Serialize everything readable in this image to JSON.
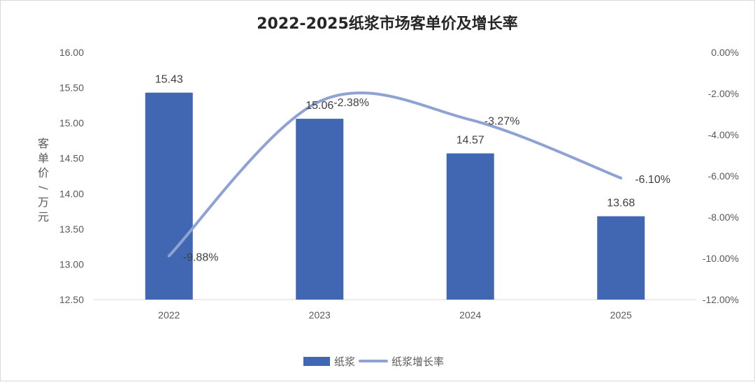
{
  "chart_data": {
    "type": "bar",
    "title": "2022-2025纸浆市场客单价及增长率",
    "ylabel": "客单价/万元",
    "categories": [
      "2022",
      "2023",
      "2024",
      "2025"
    ],
    "ylim": [
      12.5,
      16.0
    ],
    "y_ticks": [
      "16.00",
      "15.50",
      "15.00",
      "14.50",
      "14.00",
      "13.50",
      "13.00",
      "12.50"
    ],
    "y2lim": [
      -0.12,
      0.0
    ],
    "y2_ticks": [
      "0.00%",
      "-2.00%",
      "-4.00%",
      "-6.00%",
      "-8.00%",
      "-10.00%",
      "-12.00%"
    ],
    "series": [
      {
        "name": "纸浆",
        "kind": "bar",
        "axis": "left",
        "color": "#4267b2",
        "values": [
          15.43,
          15.06,
          14.57,
          13.68
        ],
        "labels": [
          "15.43",
          "15.06",
          "14.57",
          "13.68"
        ]
      },
      {
        "name": "纸浆增长率",
        "kind": "line",
        "axis": "right",
        "color": "#8fa2d4",
        "smooth": true,
        "values": [
          -0.0988,
          -0.0238,
          -0.0327,
          -0.061
        ],
        "labels": [
          "-9.88%",
          "-2.38%",
          "-3.27%",
          "-6.10%"
        ]
      }
    ],
    "grid": false,
    "legend": "bottom-center"
  }
}
